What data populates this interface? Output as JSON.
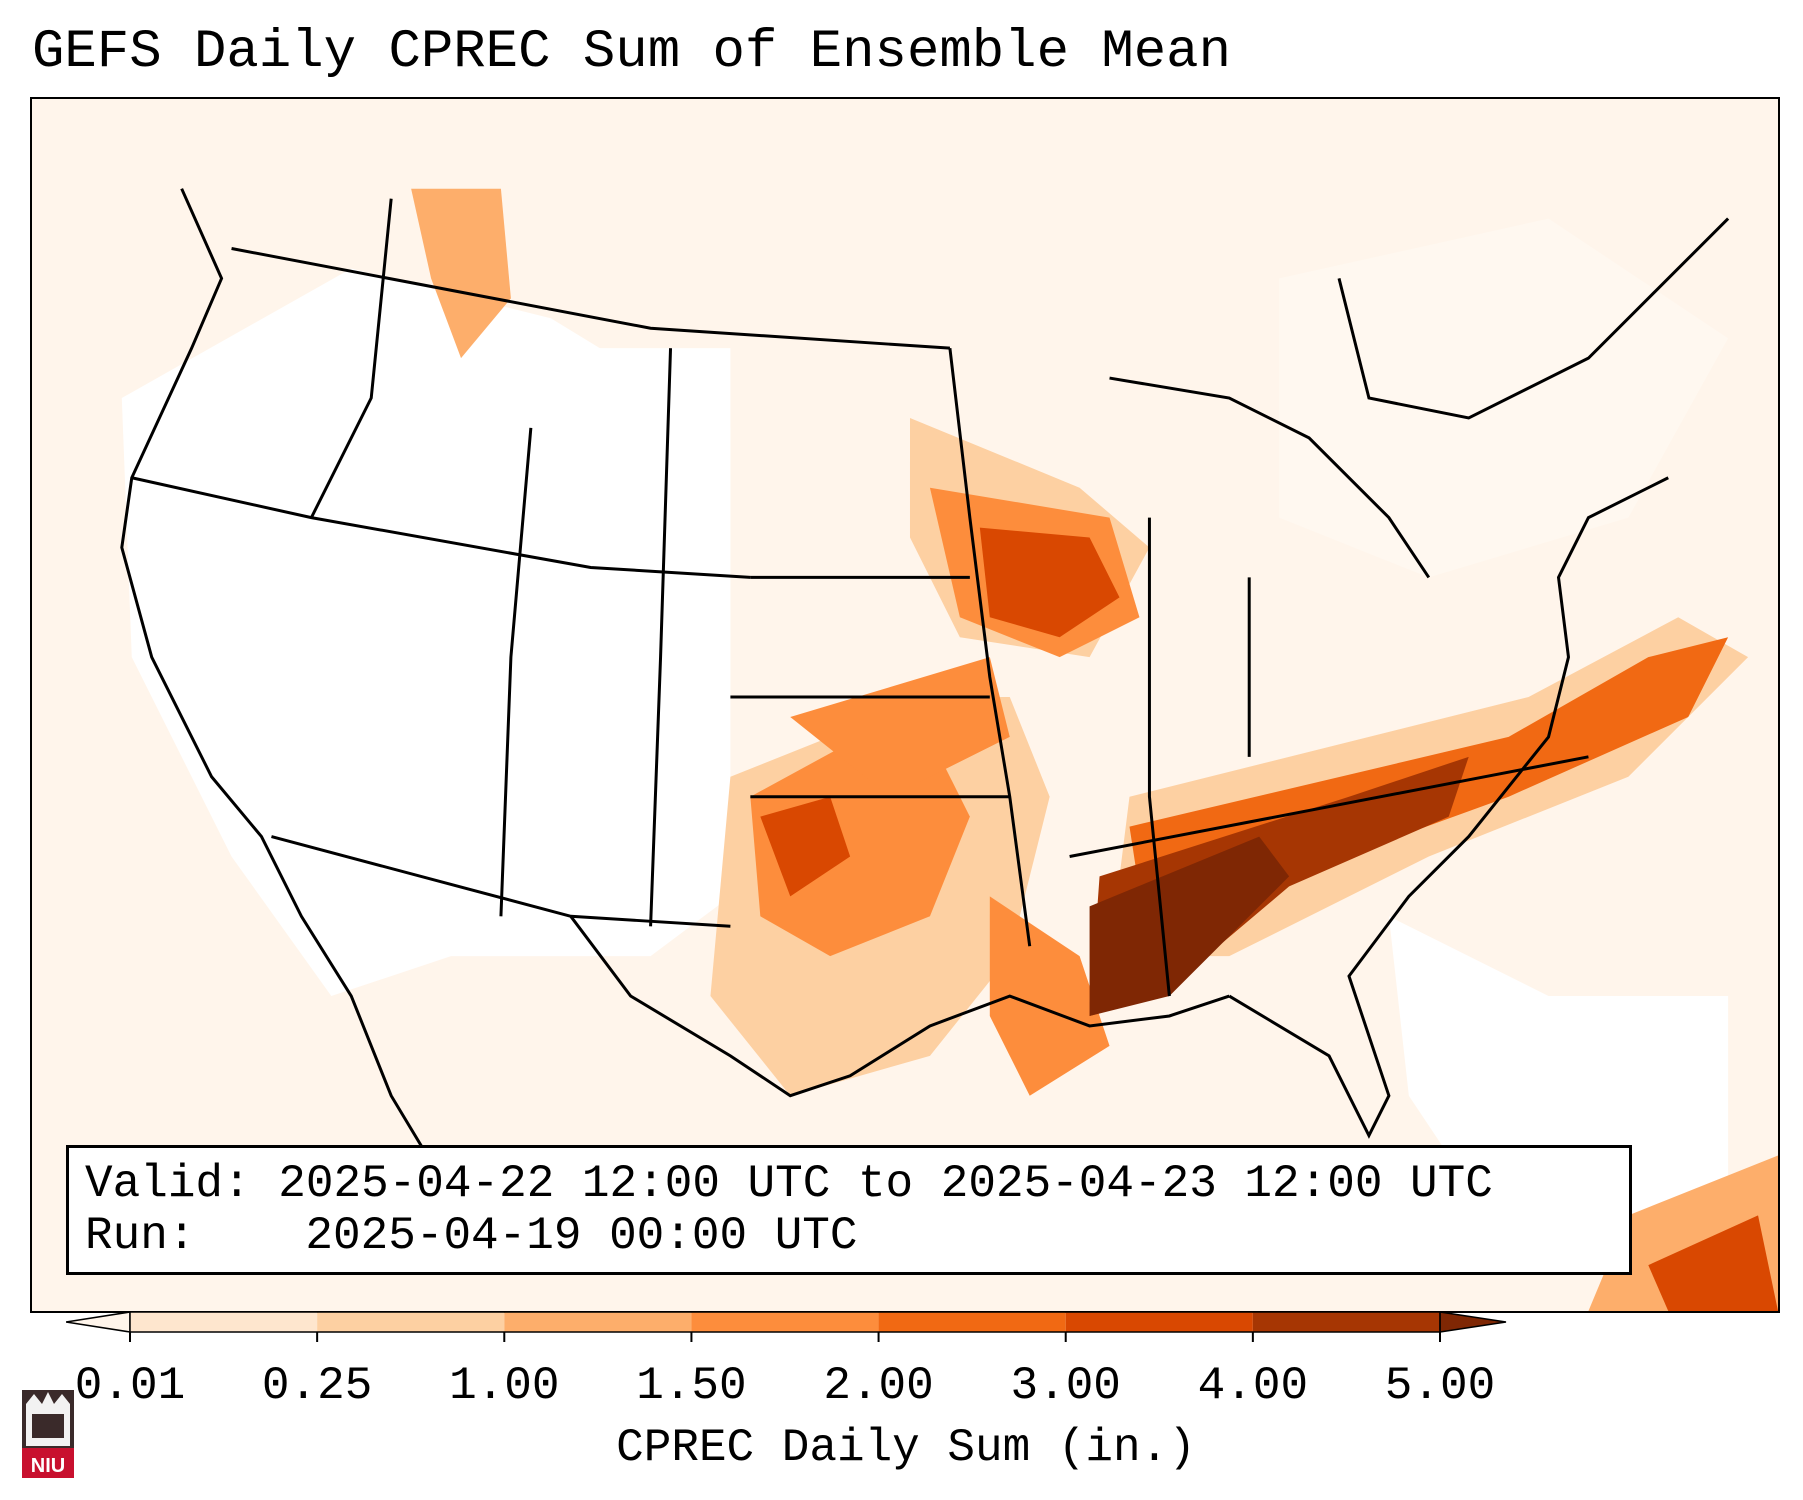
{
  "title": "GEFS Daily CPREC Sum of Ensemble Mean",
  "info": {
    "valid_label": "Valid:",
    "valid_value": "2025-04-22 12:00 UTC to 2025-04-23 12:00 UTC",
    "run_label": "Run:",
    "run_value": "2025-04-19 00:00 UTC"
  },
  "colorbar": {
    "label": "CPREC Daily Sum (in.)",
    "ticks": [
      "0.01",
      "0.25",
      "1.00",
      "1.50",
      "2.00",
      "3.00",
      "4.00",
      "5.00"
    ],
    "colors": [
      "#fff5eb",
      "#fee6ce",
      "#fdd0a2",
      "#fdae6b",
      "#fd8d3c",
      "#f16913",
      "#d94801",
      "#a63603",
      "#7f2704"
    ]
  },
  "logo": {
    "text": "NIU"
  }
}
